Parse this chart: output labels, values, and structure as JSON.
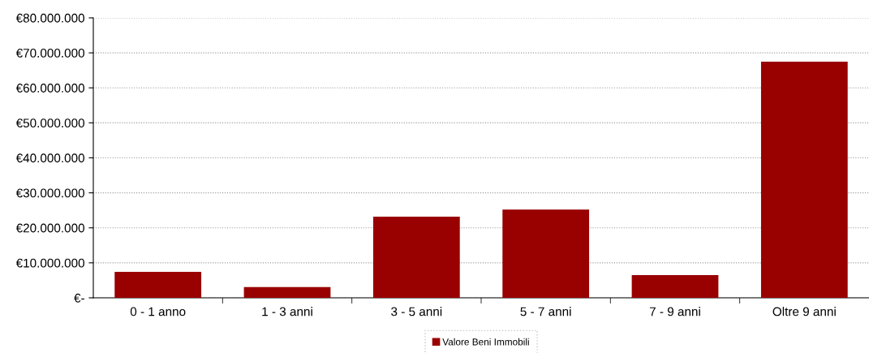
{
  "chart_data": {
    "type": "bar",
    "categories": [
      "0 - 1 anno",
      "1 - 3 anni",
      "3 - 5 anni",
      "5 - 7 anni",
      "7 - 9 anni",
      "Oltre 9 anni"
    ],
    "series": [
      {
        "name": "Valore Beni Immobili",
        "color": "#990000",
        "values": [
          7400000,
          3100000,
          23200000,
          25200000,
          6500000,
          67500000
        ]
      }
    ],
    "ylim": [
      0,
      80000000
    ],
    "yticks": [
      {
        "value": 0,
        "label": "€-"
      },
      {
        "value": 10000000,
        "label": "€10.000.000"
      },
      {
        "value": 20000000,
        "label": "€20.000.000"
      },
      {
        "value": 30000000,
        "label": "€30.000.000"
      },
      {
        "value": 40000000,
        "label": "€40.000.000"
      },
      {
        "value": 50000000,
        "label": "€50.000.000"
      },
      {
        "value": 60000000,
        "label": "€60.000.000"
      },
      {
        "value": 70000000,
        "label": "€70.000.000"
      },
      {
        "value": 80000000,
        "label": "€80.000.000"
      }
    ],
    "grid": "y",
    "legend": "bottom"
  }
}
